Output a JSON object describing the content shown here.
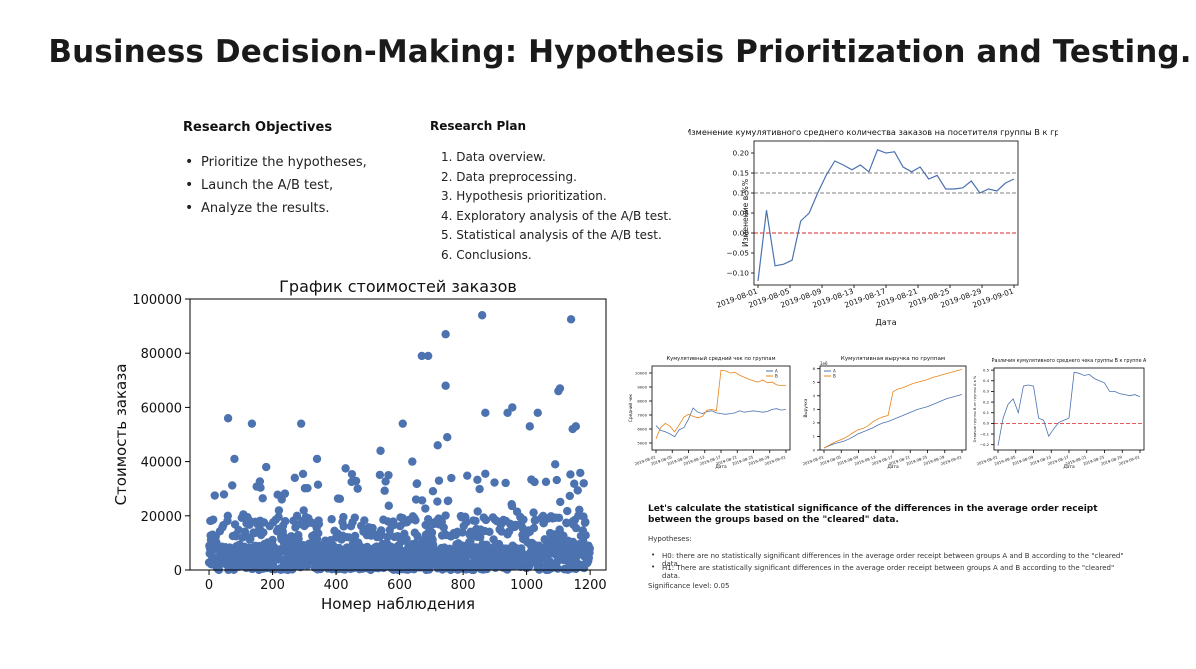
{
  "page_title": "Business Decision-Making: Hypothesis Prioritization and Testing.",
  "objectives": {
    "heading": "Research Objectives",
    "items": [
      "Prioritize the hypotheses,",
      "Launch the A/B test,",
      "Analyze the results."
    ]
  },
  "plan": {
    "heading": "Research Plan",
    "items": [
      "1. Data overview.",
      "2. Data preprocessing.",
      "3. Hypothesis prioritization.",
      "4. Exploratory analysis of the A/B test.",
      "5. Statistical analysis of the A/B test.",
      "6. Conclusions."
    ]
  },
  "significance_section": {
    "title": "Let's calculate the statistical significance of the differences in the average order receipt between the groups based on the \"cleared\" data.",
    "hypotheses_label": "Hypotheses:",
    "h0": "H0: there are no statistically significant differences in the average order receipt between groups A and B according to the \"cleared\" data.",
    "h1": "H1: There are statistically significant differences in the average order receipt between groups A and B according to the \"cleared\" data.",
    "significance": "Significance level: 0.05"
  },
  "colors": {
    "scatter": "#4c72b0",
    "line_a": "#4c72b0",
    "line_b": "#e8851a",
    "ref_red": "#d62728",
    "ref_gray": "#808080"
  },
  "chart_data": [
    {
      "id": "scatter",
      "type": "scatter",
      "title": "График стоимостей заказов",
      "xlabel": "Номер наблюдения",
      "ylabel": "Стоимость заказа",
      "xlim": [
        -60,
        1250
      ],
      "ylim": [
        0,
        100000
      ],
      "xticks": [
        "0",
        "200",
        "400",
        "600",
        "800",
        "1000",
        "1200"
      ],
      "yticks": [
        "0",
        "20000",
        "40000",
        "60000",
        "80000",
        "100000"
      ],
      "notable_points": [
        {
          "x": 60,
          "y": 56000
        },
        {
          "x": 80,
          "y": 41000
        },
        {
          "x": 135,
          "y": 54000
        },
        {
          "x": 180,
          "y": 38000
        },
        {
          "x": 290,
          "y": 54000
        },
        {
          "x": 340,
          "y": 41000
        },
        {
          "x": 610,
          "y": 54000
        },
        {
          "x": 670,
          "y": 79000
        },
        {
          "x": 690,
          "y": 79000
        },
        {
          "x": 745,
          "y": 87000
        },
        {
          "x": 745,
          "y": 68000
        },
        {
          "x": 860,
          "y": 94000
        },
        {
          "x": 870,
          "y": 58000
        },
        {
          "x": 940,
          "y": 58000
        },
        {
          "x": 955,
          "y": 60000
        },
        {
          "x": 1010,
          "y": 53000
        },
        {
          "x": 1035,
          "y": 58000
        },
        {
          "x": 1100,
          "y": 66000
        },
        {
          "x": 1105,
          "y": 67000
        },
        {
          "x": 1140,
          "y": 92500
        },
        {
          "x": 1145,
          "y": 52000
        },
        {
          "x": 1155,
          "y": 53000
        },
        {
          "x": 750,
          "y": 49000
        },
        {
          "x": 720,
          "y": 46000
        },
        {
          "x": 1090,
          "y": 39000
        },
        {
          "x": 1180,
          "y": 32000
        },
        {
          "x": 430,
          "y": 37500
        },
        {
          "x": 540,
          "y": 44000
        },
        {
          "x": 640,
          "y": 40000
        },
        {
          "x": 870,
          "y": 35500
        },
        {
          "x": 565,
          "y": 35000
        },
        {
          "x": 270,
          "y": 34000
        }
      ],
      "bulk_range": "0–20000 (dense)"
    },
    {
      "id": "conversion-diff",
      "type": "line",
      "title": "Изменение кумулятивного среднего количества заказов на посетителя группы B к группе A.",
      "xlabel": "Дата",
      "ylabel": "Изменение в %%",
      "ylim": [
        -0.13,
        0.23
      ],
      "yticks": [
        "−0.10",
        "−0.05",
        "0.00",
        "0.05",
        "0.10",
        "0.15",
        "0.20"
      ],
      "xticks": [
        "2019-08-01",
        "2019-08-05",
        "2019-08-09",
        "2019-08-13",
        "2019-08-17",
        "2019-08-21",
        "2019-08-25",
        "2019-08-29",
        "2019-09-01"
      ],
      "hlines": [
        0.0,
        0.1,
        0.15
      ],
      "series": [
        {
          "values": [
            -0.12,
            0.057,
            -0.082,
            -0.078,
            -0.068,
            0.03,
            0.05,
            0.1,
            0.145,
            0.18,
            0.17,
            0.158,
            0.17,
            0.153,
            0.208,
            0.2,
            0.203,
            0.165,
            0.153,
            0.165,
            0.135,
            0.144,
            0.11,
            0.11,
            0.113,
            0.13,
            0.1,
            0.11,
            0.105,
            0.125,
            0.135
          ]
        }
      ]
    },
    {
      "id": "avg-check",
      "type": "line",
      "title": "Кумулятивный средний чек по группам",
      "xlabel": "Дата",
      "ylabel": "Средний чек",
      "yticks": [
        "5000",
        "6000",
        "7000",
        "8000",
        "9000",
        "10000"
      ],
      "ylim": [
        4500,
        10500
      ],
      "series": [
        {
          "name": "A",
          "values": [
            6250,
            5900,
            5800,
            5650,
            5450,
            5950,
            6100,
            6700,
            7500,
            7200,
            7100,
            7250,
            7300,
            7150,
            7100,
            7050,
            7100,
            7150,
            7300,
            7200,
            7250,
            7300,
            7250,
            7200,
            7250,
            7400,
            7450,
            7350,
            7400
          ]
        },
        {
          "name": "B",
          "values": [
            5300,
            6100,
            6400,
            6200,
            5800,
            6300,
            6850,
            7050,
            6900,
            6800,
            6900,
            7350,
            7400,
            7300,
            10200,
            10150,
            10000,
            10050,
            9850,
            9700,
            9550,
            9450,
            9350,
            9500,
            9300,
            9350,
            9150,
            9100,
            9100
          ]
        }
      ]
    },
    {
      "id": "revenue",
      "type": "line",
      "title": "Кумулятивная выручка по группам",
      "xlabel": "Дата",
      "ylabel": "Выручка",
      "unit_label": "1e6",
      "yticks": [
        "0",
        "1",
        "2",
        "3",
        "4",
        "5",
        "6"
      ],
      "ylim": [
        0,
        6.2
      ],
      "series": [
        {
          "name": "A",
          "values": [
            0.15,
            0.3,
            0.45,
            0.55,
            0.65,
            0.8,
            1.0,
            1.2,
            1.35,
            1.5,
            1.65,
            1.85,
            2.0,
            2.1,
            2.25,
            2.4,
            2.55,
            2.7,
            2.85,
            3.0,
            3.1,
            3.2,
            3.35,
            3.5,
            3.65,
            3.8,
            3.9,
            4.0,
            4.1
          ]
        },
        {
          "name": "B",
          "values": [
            0.15,
            0.35,
            0.55,
            0.7,
            0.85,
            1.05,
            1.3,
            1.5,
            1.6,
            1.8,
            2.1,
            2.3,
            2.45,
            2.55,
            4.3,
            4.5,
            4.6,
            4.75,
            4.9,
            5.0,
            5.1,
            5.2,
            5.35,
            5.45,
            5.55,
            5.65,
            5.75,
            5.85,
            5.95
          ]
        }
      ]
    },
    {
      "id": "avg-check-diff",
      "type": "line",
      "title": "Различия кумулятивного среднего чека группы B к группе A",
      "xlabel": "Дата",
      "ylabel": "Отличие группы B от группы A в %",
      "yticks": [
        "−0.2",
        "−0.1",
        "0.0",
        "0.1",
        "0.2",
        "0.3",
        "0.4",
        "0.5"
      ],
      "ylim": [
        -0.25,
        0.52
      ],
      "hlines": [
        0.0
      ],
      "series": [
        {
          "values": [
            -0.21,
            0.05,
            0.18,
            0.23,
            0.1,
            0.35,
            0.36,
            0.35,
            0.05,
            0.03,
            -0.12,
            -0.05,
            0.01,
            0.03,
            0.05,
            0.48,
            0.47,
            0.45,
            0.46,
            0.42,
            0.4,
            0.38,
            0.3,
            0.3,
            0.28,
            0.27,
            0.26,
            0.27,
            0.25
          ]
        }
      ]
    }
  ]
}
